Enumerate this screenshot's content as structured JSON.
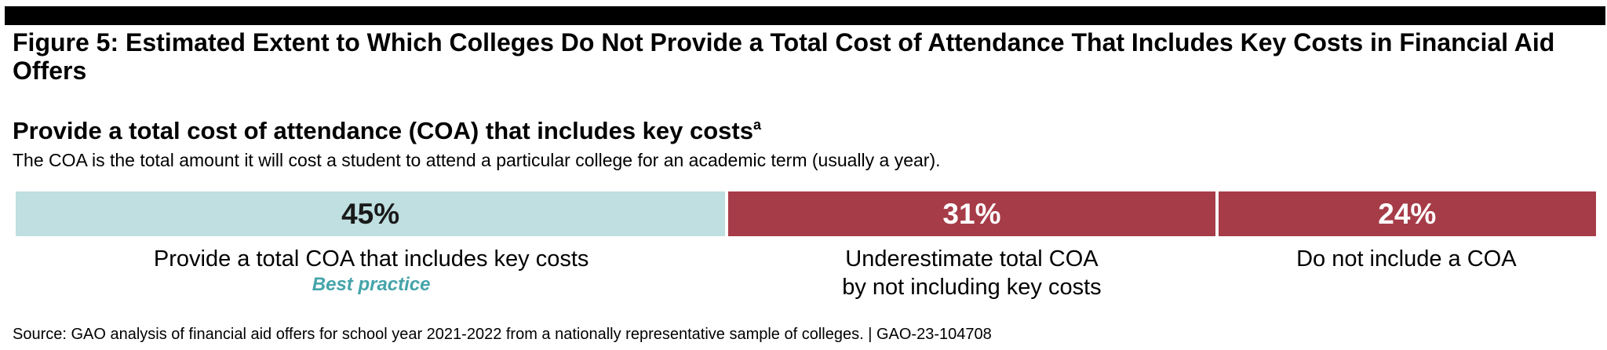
{
  "figure_title": "Figure 5: Estimated Extent to Which Colleges Do Not Provide a Total Cost of Attendance That Includes Key Costs in Financial Aid Offers",
  "subtitle": "Provide a total cost of attendance (COA) that includes key costs",
  "subtitle_footnote_marker": "a",
  "description": "The COA is the total amount it will cost a student to attend a particular college for an academic term (usually a year).",
  "source": "Source: GAO analysis of financial aid offers for school year 2021-2022 from a nationally representative sample of colleges.  |  GAO-23-104708",
  "colors": {
    "best_practice_bar": "#bfdfe0",
    "other_bar": "#a63c48",
    "best_practice_text": "#45a4aa",
    "dark_label": "#1a1a1a",
    "light_label": "#ffffff"
  },
  "chart_data": {
    "type": "bar",
    "orientation": "horizontal-stacked",
    "unit": "%",
    "total": 100,
    "segments": [
      {
        "value": 45,
        "label": "45%",
        "category_lines": [
          "Provide a total COA that includes key costs"
        ],
        "note": "Best practice",
        "color": "#bfdfe0"
      },
      {
        "value": 31,
        "label": "31%",
        "category_lines": [
          "Underestimate total COA",
          "by not including key costs"
        ],
        "note": "",
        "color": "#a63c48"
      },
      {
        "value": 24,
        "label": "24%",
        "category_lines": [
          "Do not include a COA"
        ],
        "note": "",
        "color": "#a63c48"
      }
    ]
  }
}
